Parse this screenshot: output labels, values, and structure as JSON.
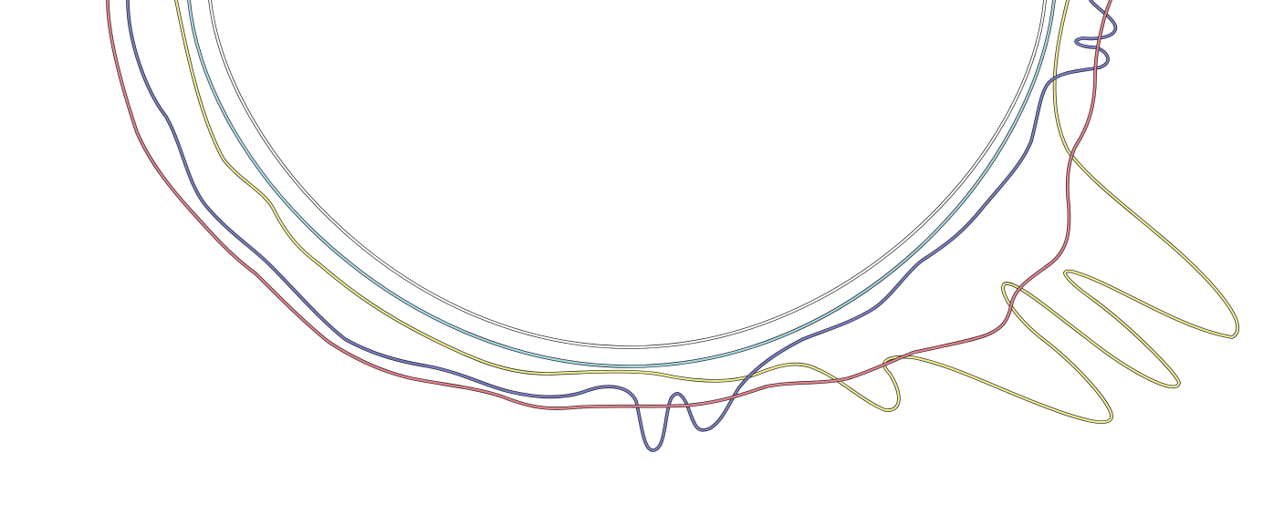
{
  "colors": {
    "background": "#ffffff",
    "outline": "#1a1a1a",
    "ring_black": "#ffffff",
    "ring_cyan": "#a9dceb",
    "contour_yellow": "#f2ee8f",
    "contour_blue": "#7a80c8",
    "contour_red": "#e9838f"
  }
}
